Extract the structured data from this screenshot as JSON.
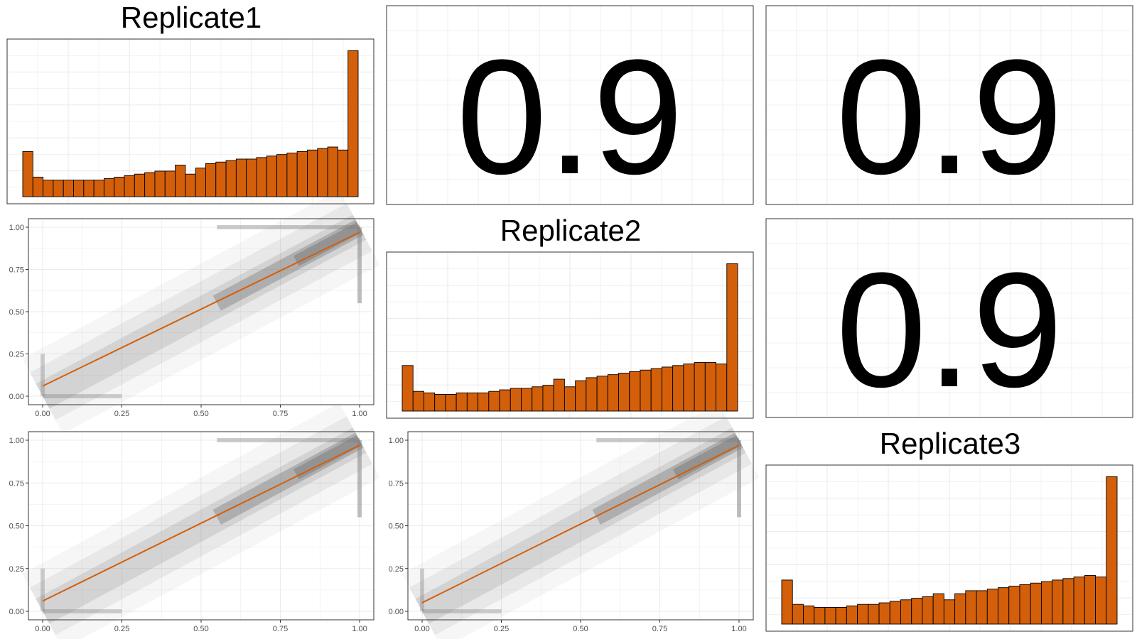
{
  "colors": {
    "bar_fill": "#d35f0a",
    "bar_stroke": "#000000",
    "fit_line": "#d35f0a",
    "points": "#808080",
    "grid": "#ebebeb",
    "panel_border": "#333333"
  },
  "chart_data": [
    {
      "panel": "r1c1",
      "type": "bar",
      "title": "Replicate1",
      "values": [
        30,
        13,
        11,
        11,
        11,
        11,
        11,
        11,
        12,
        13,
        14,
        15,
        16,
        17,
        17,
        21,
        15,
        19,
        22,
        23,
        24,
        25,
        25,
        26,
        27,
        28,
        29,
        30,
        31,
        32,
        33,
        31,
        97
      ],
      "ylim": [
        0,
        100
      ]
    },
    {
      "panel": "r1c2",
      "type": "table",
      "label": "0.9"
    },
    {
      "panel": "r1c3",
      "type": "table",
      "label": "0.9"
    },
    {
      "panel": "r2c1",
      "type": "scatter",
      "xlim": [
        0,
        1
      ],
      "ylim": [
        0,
        1
      ],
      "xticks": [
        "0.00",
        "0.25",
        "0.50",
        "0.75",
        "1.00"
      ],
      "yticks": [
        "0.00",
        "0.25",
        "0.50",
        "0.75",
        "1.00"
      ],
      "fit_line": {
        "x": [
          0,
          1
        ],
        "y": [
          0.06,
          0.97
        ]
      }
    },
    {
      "panel": "r2c2",
      "type": "bar",
      "title": "Replicate2",
      "values": [
        30,
        13,
        12,
        11,
        11,
        12,
        12,
        12,
        13,
        14,
        15,
        15,
        16,
        17,
        21,
        16,
        20,
        22,
        23,
        24,
        25,
        26,
        27,
        28,
        29,
        30,
        31,
        32,
        32,
        31,
        97
      ],
      "ylim": [
        0,
        100
      ]
    },
    {
      "panel": "r2c3",
      "type": "table",
      "label": "0.9"
    },
    {
      "panel": "r3c1",
      "type": "scatter",
      "xlim": [
        0,
        1
      ],
      "ylim": [
        0,
        1
      ],
      "xticks": [
        "0.00",
        "0.25",
        "0.50",
        "0.75",
        "1.00"
      ],
      "yticks": [
        "0.00",
        "0.25",
        "0.50",
        "0.75",
        "1.00"
      ],
      "fit_line": {
        "x": [
          0,
          1
        ],
        "y": [
          0.06,
          0.97
        ]
      }
    },
    {
      "panel": "r3c2",
      "type": "scatter",
      "xlim": [
        0,
        1
      ],
      "ylim": [
        0,
        1
      ],
      "xticks": [
        "0.00",
        "0.25",
        "0.50",
        "0.75",
        "1.00"
      ],
      "yticks": [
        "0.00",
        "0.25",
        "0.50",
        "0.75",
        "1.00"
      ],
      "fit_line": {
        "x": [
          0,
          1
        ],
        "y": [
          0.05,
          0.97
        ]
      }
    },
    {
      "panel": "r3c3",
      "type": "bar",
      "title": "Replicate3",
      "values": [
        29,
        13,
        12,
        11,
        11,
        11,
        12,
        13,
        13,
        14,
        15,
        16,
        17,
        18,
        20,
        16,
        20,
        22,
        22,
        23,
        24,
        25,
        26,
        27,
        28,
        29,
        30,
        31,
        32,
        31,
        97
      ],
      "ylim": [
        0,
        100
      ]
    }
  ]
}
